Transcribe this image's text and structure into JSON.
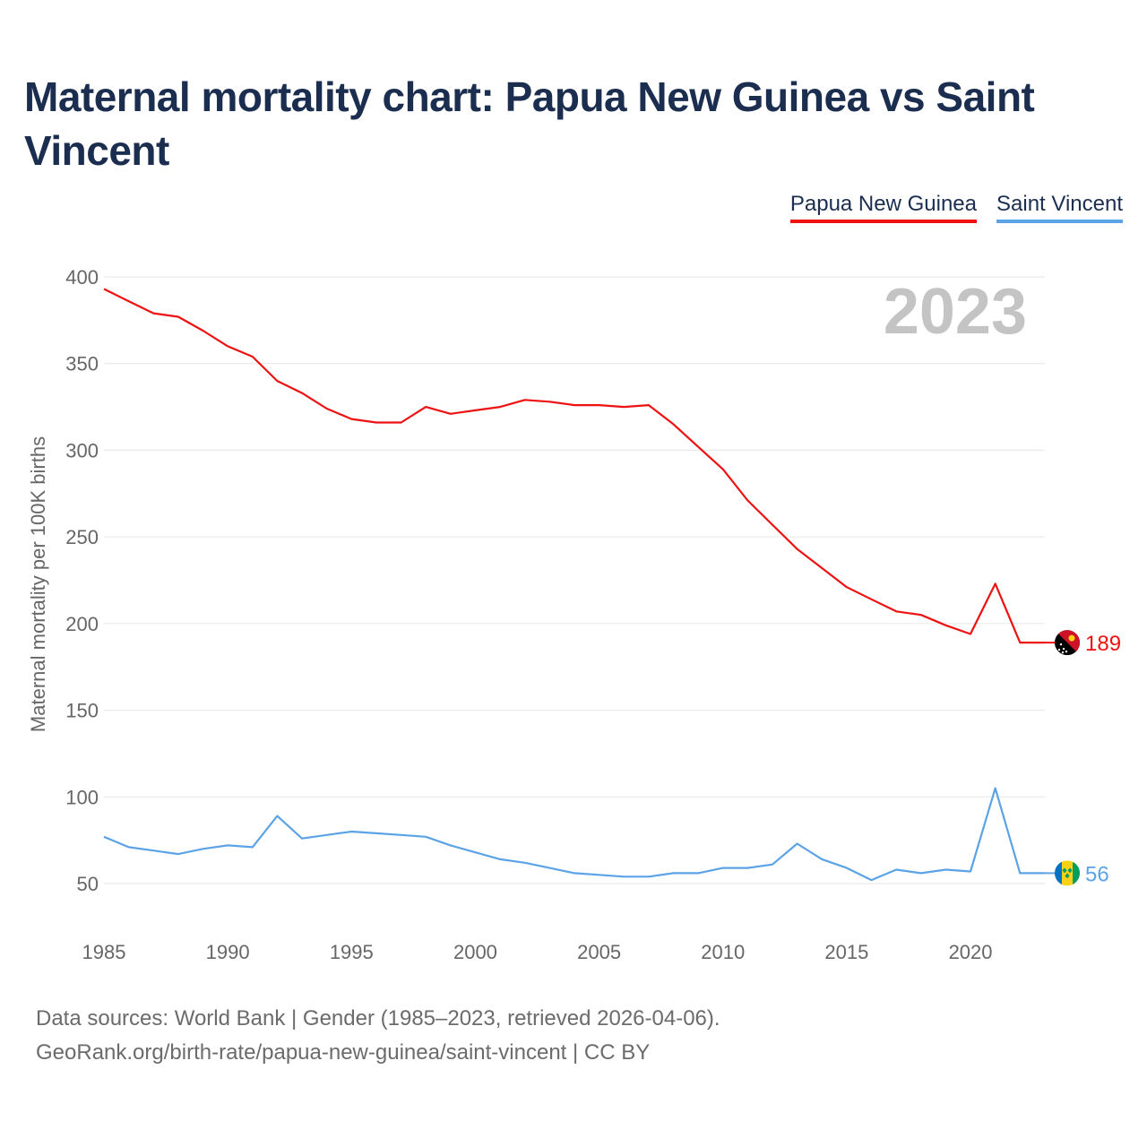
{
  "title": "Maternal mortality chart: Papua New Guinea vs Saint Vincent",
  "source_line1": "Data sources: World Bank | Gender (1985–2023, retrieved 2026-04-06).",
  "source_line2": "GeoRank.org/birth-rate/papua-new-guinea/saint-vincent | CC BY",
  "chart_data": {
    "type": "line",
    "title": "Maternal mortality chart: Papua New Guinea vs Saint Vincent",
    "xlabel": "",
    "ylabel": "Maternal mortality per 100K births",
    "year_label": "2023",
    "xlim": [
      1985,
      2023
    ],
    "ylim": [
      30,
      410
    ],
    "yticks": [
      50,
      100,
      150,
      200,
      250,
      300,
      350,
      400
    ],
    "xticks": [
      1985,
      1990,
      1995,
      2000,
      2005,
      2010,
      2015,
      2020
    ],
    "grid": true,
    "legend_position": "top-right",
    "x": [
      1985,
      1986,
      1987,
      1988,
      1989,
      1990,
      1991,
      1992,
      1993,
      1994,
      1995,
      1996,
      1997,
      1998,
      1999,
      2000,
      2001,
      2002,
      2003,
      2004,
      2005,
      2006,
      2007,
      2008,
      2009,
      2010,
      2011,
      2012,
      2013,
      2014,
      2015,
      2016,
      2017,
      2018,
      2019,
      2020,
      2021,
      2022,
      2023
    ],
    "series": [
      {
        "name": "Papua New Guinea",
        "color": "#ee1111",
        "end_label": "189",
        "flag": "papua-new-guinea-flag-icon",
        "values": [
          393,
          386,
          379,
          377,
          369,
          360,
          354,
          340,
          333,
          324,
          318,
          316,
          316,
          325,
          321,
          323,
          325,
          329,
          328,
          326,
          326,
          325,
          326,
          315,
          302,
          289,
          271,
          257,
          243,
          232,
          221,
          214,
          207,
          205,
          199,
          194,
          223,
          189,
          189
        ]
      },
      {
        "name": "Saint Vincent",
        "color": "#5ba3e6",
        "end_label": "56",
        "flag": "saint-vincent-flag-icon",
        "values": [
          77,
          71,
          69,
          67,
          70,
          72,
          71,
          89,
          76,
          78,
          80,
          79,
          78,
          77,
          72,
          68,
          64,
          62,
          59,
          56,
          55,
          54,
          54,
          56,
          56,
          59,
          59,
          61,
          73,
          64,
          59,
          52,
          58,
          56,
          58,
          57,
          105,
          56,
          56
        ]
      }
    ]
  }
}
